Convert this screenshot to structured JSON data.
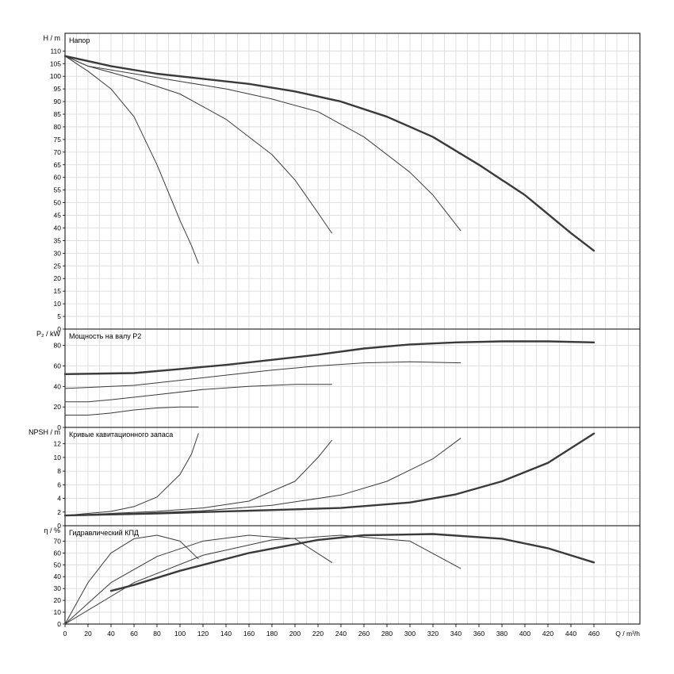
{
  "chart_data": [
    {
      "type": "line",
      "title": "Напор",
      "ylabel": "H / m",
      "ylim": [
        0,
        117
      ],
      "yticks": [
        0,
        5,
        10,
        15,
        20,
        25,
        30,
        35,
        40,
        45,
        50,
        55,
        60,
        65,
        70,
        75,
        80,
        85,
        90,
        95,
        100,
        105,
        110
      ],
      "series": [
        {
          "weight": 1,
          "x": [
            0,
            20,
            40,
            60,
            80,
            100,
            110,
            116
          ],
          "y": [
            108,
            102,
            95,
            84,
            65,
            43,
            33,
            26
          ]
        },
        {
          "weight": 1,
          "x": [
            0,
            20,
            60,
            100,
            140,
            180,
            200,
            220,
            232
          ],
          "y": [
            108,
            104,
            99,
            93,
            83,
            69,
            59,
            46,
            38
          ]
        },
        {
          "weight": 1,
          "x": [
            0,
            20,
            60,
            100,
            140,
            180,
            220,
            260,
            300,
            320,
            344
          ],
          "y": [
            108,
            104,
            101,
            98,
            95,
            91,
            86,
            76,
            62,
            53,
            39
          ]
        },
        {
          "weight": 2,
          "x": [
            0,
            40,
            80,
            120,
            160,
            200,
            240,
            280,
            320,
            360,
            400,
            440,
            460
          ],
          "y": [
            108,
            104,
            101,
            99,
            97,
            94,
            90,
            84,
            76,
            65,
            53,
            38,
            31
          ]
        }
      ]
    },
    {
      "type": "line",
      "title": "Мощность на валу P2",
      "ylabel": "P₂ / kW",
      "ylim": [
        0,
        96
      ],
      "yticks": [
        0,
        20,
        40,
        60,
        80
      ],
      "series": [
        {
          "weight": 1,
          "x": [
            0,
            20,
            40,
            60,
            80,
            100,
            116
          ],
          "y": [
            12,
            12,
            14,
            17,
            19,
            20,
            20
          ]
        },
        {
          "weight": 1,
          "x": [
            0,
            20,
            40,
            80,
            120,
            160,
            200,
            232
          ],
          "y": [
            25,
            25,
            27,
            32,
            37,
            40,
            42,
            42
          ]
        },
        {
          "weight": 1,
          "x": [
            0,
            20,
            60,
            100,
            140,
            180,
            220,
            260,
            300,
            344
          ],
          "y": [
            38,
            39,
            41,
            46,
            51,
            56,
            60,
            63,
            64,
            63
          ]
        },
        {
          "weight": 2,
          "x": [
            0,
            60,
            100,
            140,
            180,
            220,
            260,
            300,
            340,
            380,
            420,
            460
          ],
          "y": [
            52,
            53,
            57,
            61,
            66,
            71,
            77,
            81,
            83,
            84,
            84,
            83
          ]
        }
      ]
    },
    {
      "type": "line",
      "title": "Кривые кавитационного запаса",
      "ylabel": "NPSH / m",
      "ylim": [
        0,
        14.4
      ],
      "yticks": [
        0,
        2,
        4,
        6,
        8,
        10,
        12
      ],
      "series": [
        {
          "weight": 1,
          "x": [
            0,
            20,
            40,
            60,
            80,
            100,
            110,
            116
          ],
          "y": [
            1.5,
            1.8,
            2.1,
            2.8,
            4.2,
            7.5,
            10.5,
            13.5
          ]
        },
        {
          "weight": 1,
          "x": [
            0,
            40,
            80,
            120,
            160,
            200,
            220,
            232
          ],
          "y": [
            1.5,
            1.8,
            2.1,
            2.6,
            3.6,
            6.5,
            10,
            12.5
          ]
        },
        {
          "weight": 1,
          "x": [
            0,
            60,
            120,
            180,
            240,
            280,
            320,
            344
          ],
          "y": [
            1.5,
            1.8,
            2.2,
            3,
            4.5,
            6.5,
            9.8,
            12.8
          ]
        },
        {
          "weight": 2,
          "x": [
            0,
            80,
            160,
            240,
            300,
            340,
            380,
            420,
            460
          ],
          "y": [
            1.5,
            1.8,
            2.2,
            2.6,
            3.4,
            4.6,
            6.5,
            9.2,
            13.5
          ]
        }
      ]
    },
    {
      "type": "line",
      "title": "Гидравлический КПД",
      "ylabel": "η / %",
      "ylim": [
        0,
        83
      ],
      "yticks": [
        0,
        10,
        20,
        30,
        40,
        50,
        60,
        70
      ],
      "series": [
        {
          "weight": 1,
          "x": [
            0,
            20,
            40,
            60,
            80,
            100,
            116
          ],
          "y": [
            0,
            35,
            60,
            72,
            75,
            70,
            55
          ]
        },
        {
          "weight": 1,
          "x": [
            0,
            40,
            80,
            120,
            160,
            200,
            232
          ],
          "y": [
            0,
            35,
            57,
            70,
            75,
            72,
            52
          ]
        },
        {
          "weight": 1,
          "x": [
            0,
            60,
            120,
            180,
            240,
            300,
            344
          ],
          "y": [
            0,
            35,
            58,
            71,
            75,
            70,
            47
          ]
        },
        {
          "weight": 2,
          "x": [
            40,
            60,
            100,
            160,
            220,
            260,
            320,
            380,
            420,
            460
          ],
          "y": [
            28,
            33,
            45,
            60,
            71,
            75,
            76,
            72,
            64,
            52
          ]
        }
      ]
    }
  ],
  "x_axis": {
    "label": "Q / m³/h",
    "ticks": [
      0,
      20,
      40,
      60,
      80,
      100,
      120,
      140,
      160,
      180,
      200,
      220,
      240,
      260,
      280,
      300,
      320,
      340,
      360,
      380,
      400,
      420,
      440,
      460
    ],
    "range": [
      0,
      500
    ]
  },
  "colors": {
    "grid": "#d9d9d9",
    "frame": "#000000",
    "curve": "#3a3a3a"
  }
}
